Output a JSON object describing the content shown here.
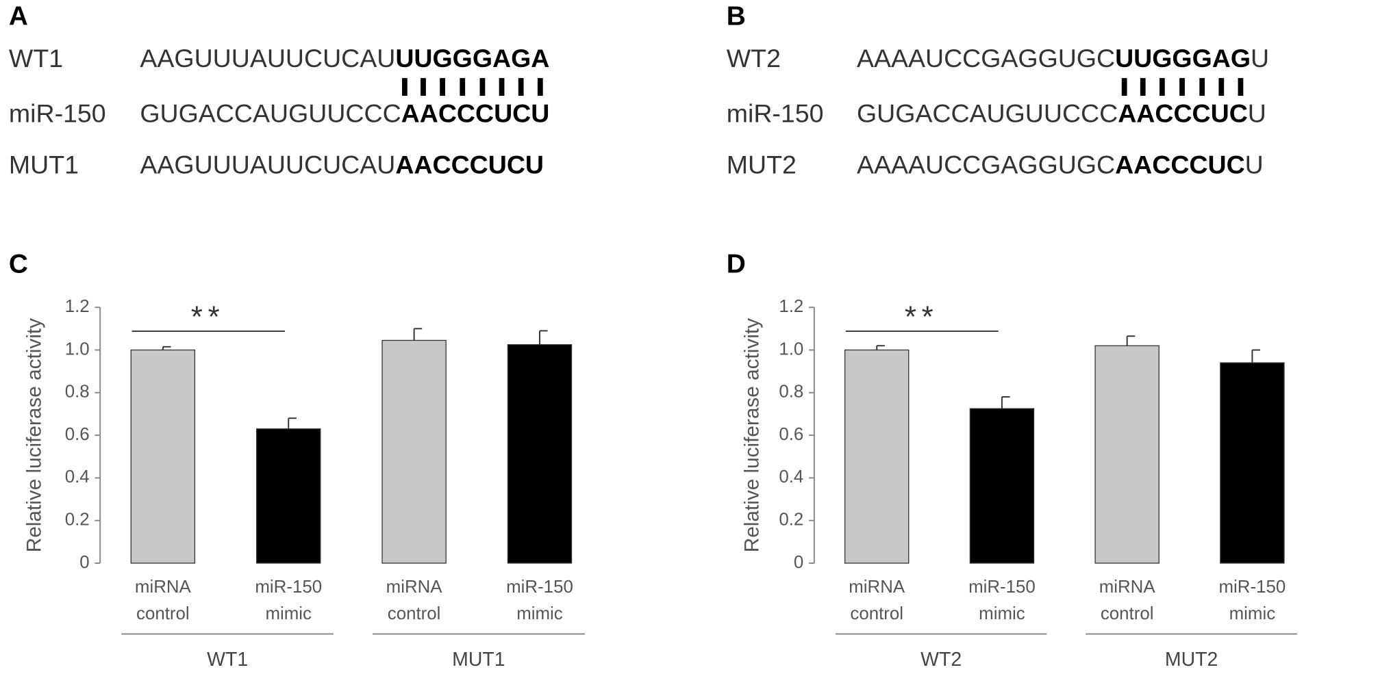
{
  "sequence_panels": [
    {
      "label": "A",
      "rows": [
        {
          "name": "WT1",
          "segments": [
            {
              "text": "AAGUUUAUUCUCAU",
              "bold": false
            },
            {
              "text": "UUGGGAGA",
              "bold": true
            }
          ]
        },
        {
          "name": "miR-150",
          "segments": [
            {
              "text": "GUGACCAUGUUCCC",
              "bold": false
            },
            {
              "text": "AACCCUCU",
              "bold": true
            }
          ]
        },
        {
          "name": "MUT1",
          "segments": [
            {
              "text": "AAGUUUAUUCUCAU",
              "bold": false
            },
            {
              "text": "AACCCUCU",
              "bold": true
            }
          ]
        }
      ]
    },
    {
      "label": "B",
      "rows": [
        {
          "name": "WT2",
          "segments": [
            {
              "text": "AAAAUCCGAGGUGC",
              "bold": false
            },
            {
              "text": "UUGGGAG",
              "bold": true
            },
            {
              "text": "U",
              "bold": false
            }
          ]
        },
        {
          "name": "miR-150",
          "segments": [
            {
              "text": "GUGACCAUGUUCCC",
              "bold": false
            },
            {
              "text": "AACCCUC",
              "bold": true
            },
            {
              "text": "U",
              "bold": false
            }
          ]
        },
        {
          "name": "MUT2",
          "segments": [
            {
              "text": "AAAAUCCGAGGUGC",
              "bold": false
            },
            {
              "text": "AACCCUC",
              "bold": true
            },
            {
              "text": "U",
              "bold": false
            }
          ]
        }
      ]
    }
  ],
  "chart_data": [
    {
      "type": "bar",
      "label": "C",
      "y_label": "Relative luciferase activity",
      "categories": [
        "miRNA control",
        "miR-150 mimic",
        "miRNA control",
        "miR-150 mimic"
      ],
      "group_labels": [
        "WT1",
        "MUT1"
      ],
      "values": [
        1.0,
        0.63,
        1.045,
        1.025
      ],
      "errors": [
        0.015,
        0.05,
        0.055,
        0.065
      ],
      "colors": [
        "#c8c8c8",
        "#000000",
        "#c8c8c8",
        "#000000"
      ],
      "ylim": [
        0,
        1.2
      ],
      "yticks": [
        0,
        0.2,
        0.4,
        0.6,
        0.8,
        {
          "value": 1,
          "label": "1.0"
        },
        1.2
      ],
      "annotations": [
        {
          "text": "**",
          "between": [
            "miRNA control",
            "miR-150 mimic"
          ]
        }
      ]
    },
    {
      "type": "bar",
      "label": "D",
      "y_label": "Relative luciferase activity",
      "categories": [
        "miRNA control",
        "miR-150 mimic",
        "miRNA control",
        "miR-150 mimic"
      ],
      "group_labels": [
        "WT2",
        "MUT2"
      ],
      "values": [
        1.0,
        0.725,
        1.02,
        0.94
      ],
      "errors": [
        0.02,
        0.055,
        0.045,
        0.06
      ],
      "colors": [
        "#c8c8c8",
        "#000000",
        "#c8c8c8",
        "#000000"
      ],
      "ylim": [
        0,
        1.2
      ],
      "yticks": [
        0,
        0.2,
        0.4,
        0.6,
        0.8,
        {
          "value": 1,
          "label": "1.0"
        },
        1.2
      ],
      "annotations": [
        {
          "text": "**",
          "between": [
            "miRNA control",
            "miR-150 mimic"
          ]
        }
      ]
    }
  ]
}
